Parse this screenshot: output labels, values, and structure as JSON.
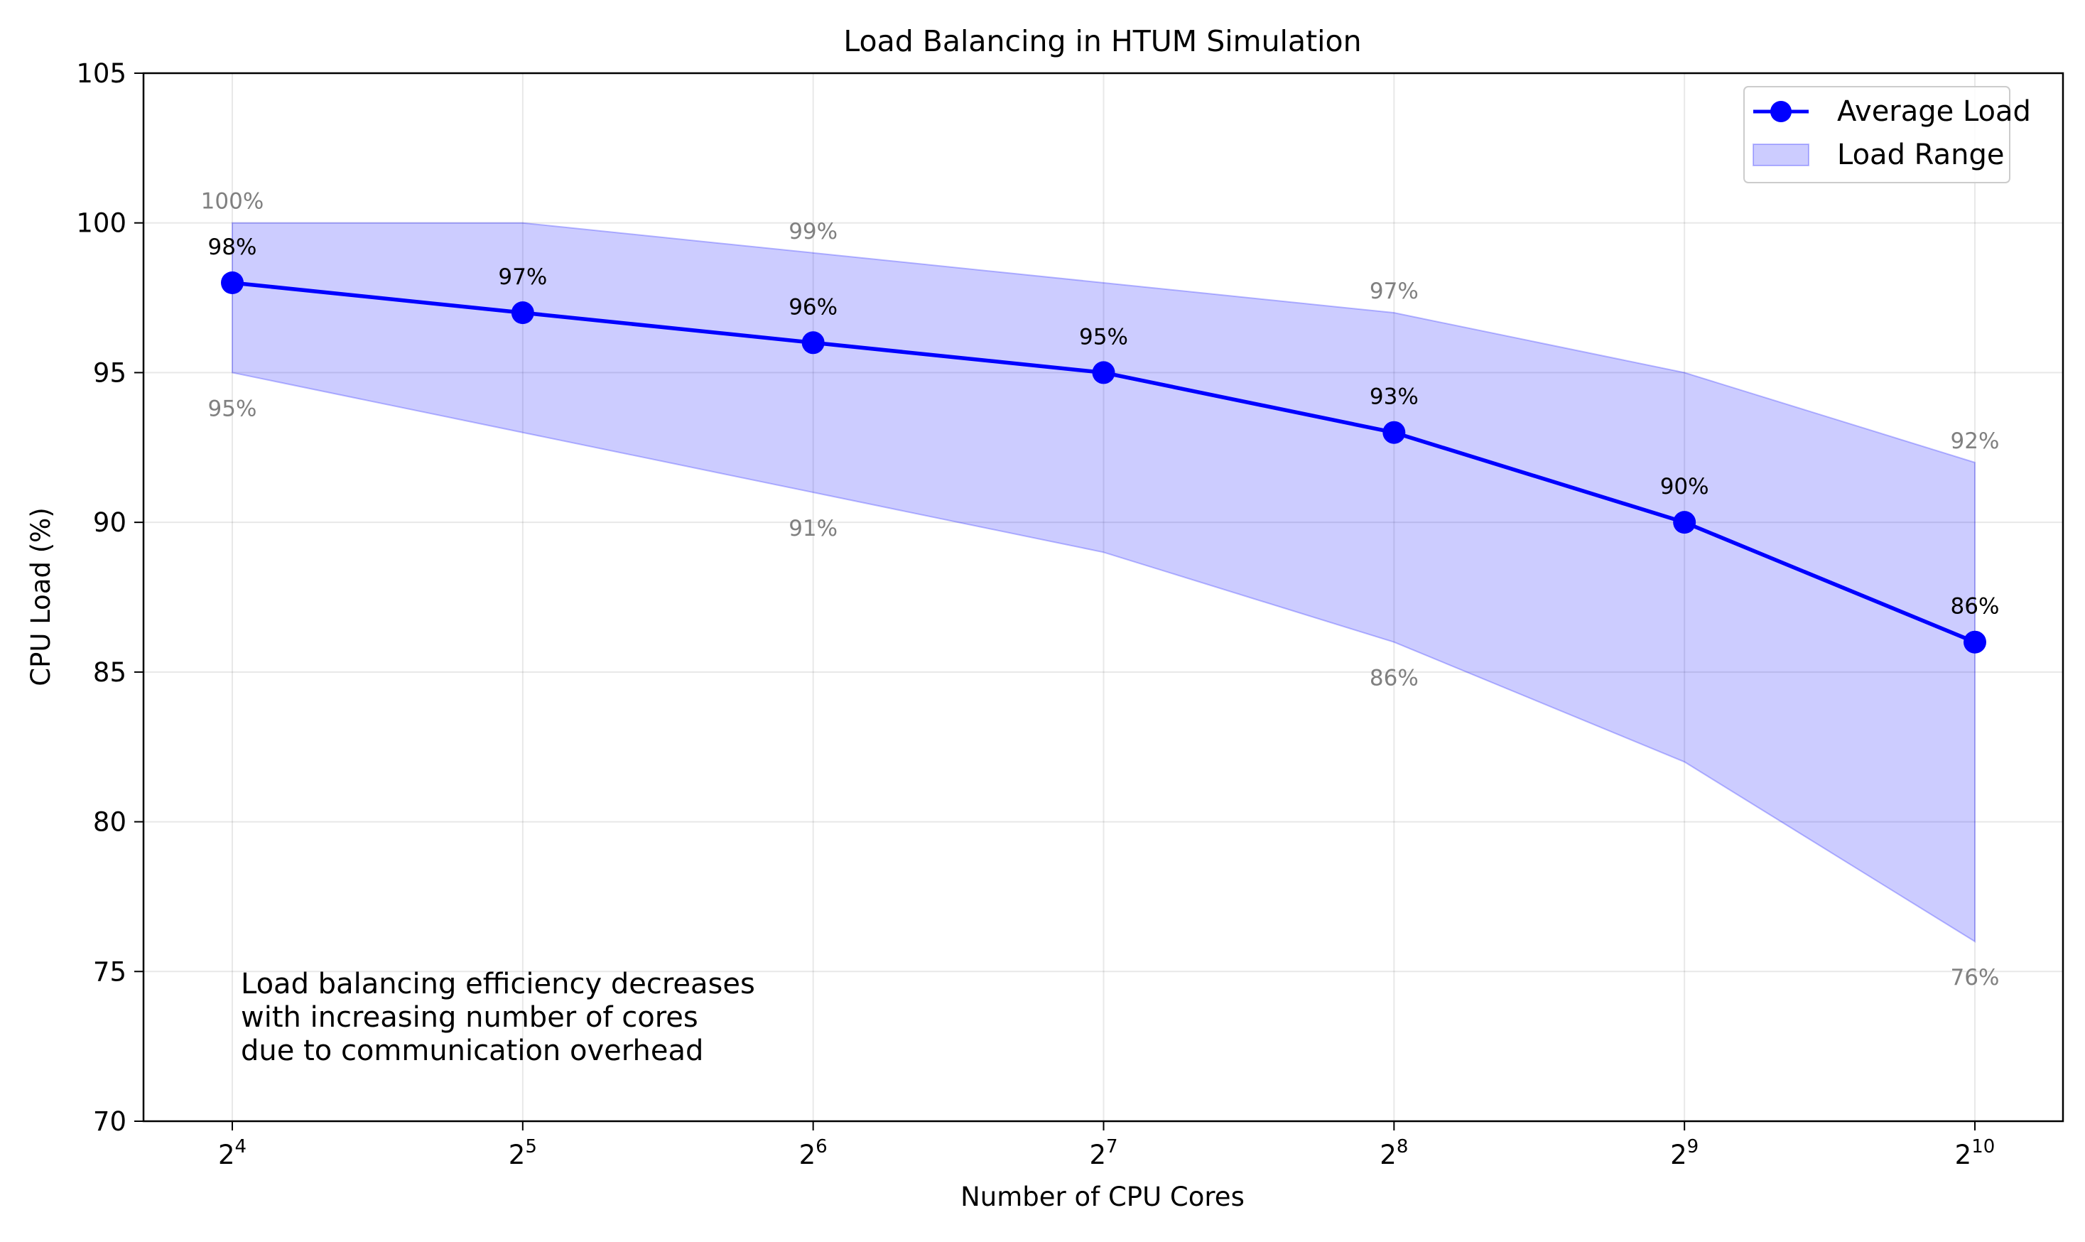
{
  "chart_data": {
    "type": "line",
    "title": "Load Balancing in HTUM Simulation",
    "xlabel": "Number of CPU Cores",
    "ylabel": "CPU Load (%)",
    "x_scale": "log2",
    "x": [
      16,
      32,
      64,
      128,
      256,
      512,
      1024
    ],
    "x_tick_labels": [
      {
        "base": "2",
        "exp": "4"
      },
      {
        "base": "2",
        "exp": "5"
      },
      {
        "base": "2",
        "exp": "6"
      },
      {
        "base": "2",
        "exp": "7"
      },
      {
        "base": "2",
        "exp": "8"
      },
      {
        "base": "2",
        "exp": "9"
      },
      {
        "base": "2",
        "exp": "10"
      }
    ],
    "ylim": [
      70,
      105
    ],
    "y_ticks": [
      70,
      75,
      80,
      85,
      90,
      95,
      100,
      105
    ],
    "grid": true,
    "series": [
      {
        "name": "Average Load",
        "values": [
          98,
          97,
          96,
          95,
          93,
          90,
          86
        ],
        "value_labels": [
          "98%",
          "97%",
          "96%",
          "95%",
          "93%",
          "90%",
          "86%"
        ],
        "color": "#0000ff"
      }
    ],
    "range": {
      "name": "Load Range",
      "max": [
        100,
        100,
        99,
        98,
        97,
        95,
        92
      ],
      "min": [
        95,
        93,
        91,
        89,
        86,
        82,
        76
      ],
      "fill_color": "#0000ff",
      "fill_opacity": 0.2
    },
    "range_annotations": [
      {
        "index": 0,
        "text": "100%",
        "position": "above"
      },
      {
        "index": 0,
        "text": "95%",
        "position": "below"
      },
      {
        "index": 2,
        "text": "99%",
        "position": "above"
      },
      {
        "index": 2,
        "text": "91%",
        "position": "below"
      },
      {
        "index": 4,
        "text": "97%",
        "position": "above"
      },
      {
        "index": 4,
        "text": "86%",
        "position": "below"
      },
      {
        "index": 6,
        "text": "92%",
        "position": "above"
      },
      {
        "index": 6,
        "text": "76%",
        "position": "below"
      }
    ],
    "annotation_lines": [
      "Load balancing efficiency decreases",
      "with increasing number of cores",
      "due to communication overhead"
    ],
    "legend": {
      "placement": "top-right",
      "entries": [
        "Average Load",
        "Load Range"
      ]
    }
  }
}
